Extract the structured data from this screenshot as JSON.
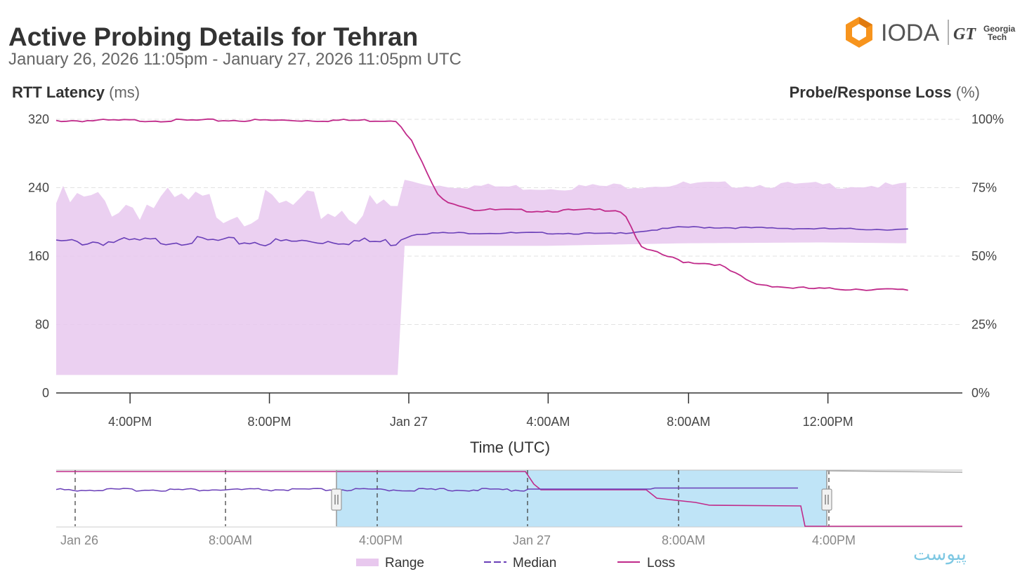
{
  "header": {
    "title": "Active Probing Details for Tehran",
    "subtitle": "January 26, 2026 11:05pm - January 27, 2026 11:05pm UTC"
  },
  "logo": {
    "brand": "IODA",
    "partner_mark": "GT",
    "partner_line1": "Georgia",
    "partner_line2": "Tech",
    "brand_color": "#f7941d"
  },
  "watermark": "پیوست",
  "colors": {
    "range_fill": "#e8c8ee",
    "median": "#6a3fb8",
    "loss": "#c02a8a",
    "navigator_selection": "#bfe4f7"
  },
  "chart_data": {
    "type": "line",
    "left_axis": {
      "label_bold": "RTT Latency",
      "label_unit": "(ms)",
      "ticks": [
        "320",
        "240",
        "160",
        "80",
        "0"
      ],
      "range": [
        0,
        320
      ]
    },
    "right_axis": {
      "label_bold": "Probe/Response Loss",
      "label_unit": "(%)",
      "ticks": [
        "100%",
        "75%",
        "50%",
        "25%",
        "0%"
      ],
      "range": [
        0,
        100
      ]
    },
    "x_axis": {
      "label": "Time (UTC)",
      "ticks": [
        "4:00PM",
        "8:00PM",
        "Jan 27",
        "4:00AM",
        "8:00AM",
        "12:00PM"
      ]
    },
    "grid": true,
    "legend": {
      "placement": "bottom",
      "items": [
        "Range",
        "Median",
        "Loss"
      ]
    },
    "series": [
      {
        "name": "Range",
        "axis": "left",
        "x_hours": [
          0,
          3,
          6,
          9,
          9.8,
          10,
          11,
          14,
          18,
          22,
          24.5
        ],
        "low": [
          21,
          21,
          21,
          21,
          21,
          172,
          172,
          172,
          175,
          176,
          175
        ],
        "high": [
          228,
          226,
          222,
          220,
          222,
          248,
          243,
          240,
          244,
          243,
          242
        ]
      },
      {
        "name": "Median",
        "axis": "left",
        "x_hours": [
          0,
          2,
          4,
          6,
          8,
          9.8,
          10.3,
          11,
          14,
          16,
          18,
          20,
          22,
          24.5
        ],
        "values": [
          178,
          179,
          180,
          178,
          180,
          178,
          186,
          187,
          187,
          186,
          194,
          193,
          192,
          191
        ]
      },
      {
        "name": "Loss",
        "axis": "right",
        "x_hours": [
          0,
          5,
          9.8,
          10.2,
          11,
          12,
          14,
          16,
          16.3,
          16.8,
          18,
          19,
          20,
          21,
          22,
          23,
          24.5
        ],
        "values": [
          99.5,
          99.6,
          99.6,
          92,
          71,
          67,
          66.5,
          67,
          66,
          53,
          48,
          47,
          40,
          38.5,
          38,
          38,
          37.5
        ]
      }
    ],
    "navigator": {
      "ticks": [
        "Jan 26",
        "8:00AM",
        "4:00PM",
        "Jan 27",
        "8:00AM",
        "4:00PM"
      ]
    }
  }
}
